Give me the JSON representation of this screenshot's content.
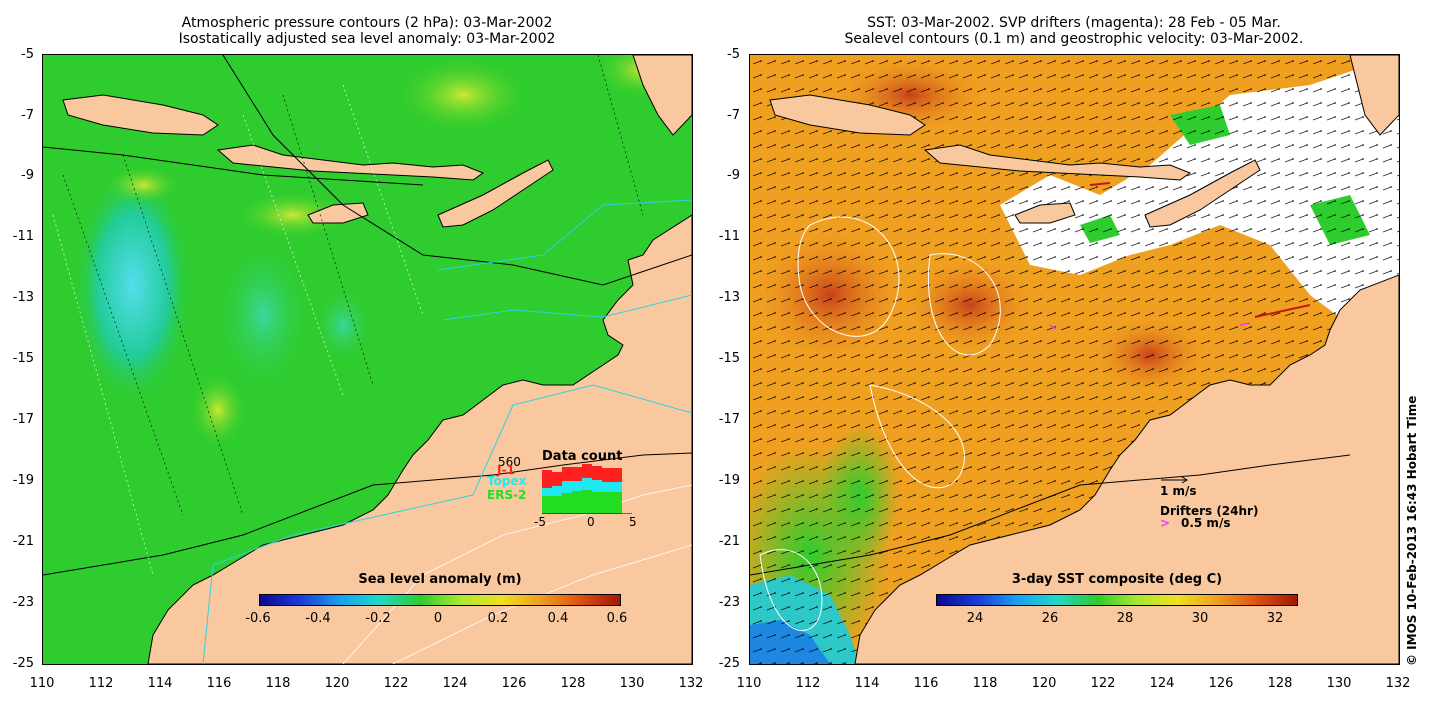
{
  "left_panel": {
    "title_line1": "Atmospheric pressure contours (2 hPa): 03-Mar-2002",
    "title_line2": "Isostatically adjusted sea level anomaly: 03-Mar-2002",
    "y_ticks": [
      "-5",
      "-7",
      "-9",
      "-11",
      "-13",
      "-15",
      "-17",
      "-19",
      "-21",
      "-23",
      "-25"
    ],
    "x_ticks": [
      "110",
      "112",
      "114",
      "116",
      "118",
      "120",
      "122",
      "124",
      "126",
      "128",
      "130",
      "132"
    ],
    "colorbar": {
      "title": "Sea level anomaly (m)",
      "ticks": [
        "-0.6",
        "-0.4",
        "-0.2",
        "0",
        "0.2",
        "0.4",
        "0.6"
      ]
    },
    "data_count": {
      "title": "Data count",
      "max_label": "560",
      "legend": [
        {
          "name": "J-1",
          "color": "#ff2020"
        },
        {
          "name": "Topex",
          "color": "#20e8f0"
        },
        {
          "name": "ERS-2",
          "color": "#22dd22"
        }
      ],
      "x_ticks": [
        "-5",
        "0",
        "5"
      ]
    }
  },
  "right_panel": {
    "title_line1": "SST: 03-Mar-2002. SVP drifters (magenta): 28 Feb - 05 Mar.",
    "title_line2": "Sealevel contours (0.1 m) and geostrophic velocity: 03-Mar-2002.",
    "y_ticks": [
      "-5",
      "-7",
      "-9",
      "-11",
      "-13",
      "-15",
      "-17",
      "-19",
      "-21",
      "-23",
      "-25"
    ],
    "x_ticks": [
      "110",
      "112",
      "114",
      "116",
      "118",
      "120",
      "122",
      "124",
      "126",
      "128",
      "130",
      "132"
    ],
    "colorbar": {
      "title": "3-day SST composite (deg C)",
      "ticks": [
        "24",
        "26",
        "28",
        "30",
        "32"
      ]
    },
    "velocity_scale_label": "1 m/s",
    "drifters_label": "Drifters (24hr)",
    "drifters_scale_label": "0.5 m/s",
    "drifter_arrow_glyph": ">"
  },
  "credit": "© IMOS 10-Feb-2013 16:43 Hobart Time",
  "colors": {
    "land": "#f9c89e",
    "ocean_sla": "#2ecc2e",
    "ocean_sst": "#f0a020",
    "frame": "#000000"
  }
}
